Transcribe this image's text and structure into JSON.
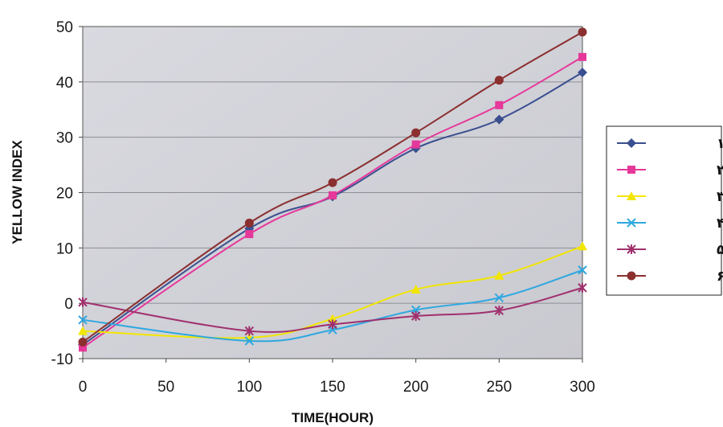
{
  "chart_data": {
    "type": "line",
    "xlabel": "TIME(HOUR)",
    "ylabel": "YELLOW INDEX",
    "xlim": [
      0,
      300
    ],
    "ylim": [
      -10,
      50
    ],
    "x_ticks": [
      "0",
      "50",
      "100",
      "150",
      "200",
      "250",
      "300"
    ],
    "y_ticks": [
      "-10",
      "0",
      "10",
      "20",
      "30",
      "40",
      "50"
    ],
    "grid": "horizontal",
    "legend_position": "right",
    "x": [
      0,
      100,
      150,
      200,
      250,
      300
    ],
    "series": [
      {
        "name": "نمونه ۱",
        "values": [
          -7.5,
          13.5,
          19.3,
          28,
          33.2,
          41.7
        ],
        "color": "#3a4f8f",
        "marker": "diamond"
      },
      {
        "name": "نمونه ۲",
        "values": [
          -8,
          12.5,
          19.5,
          28.7,
          35.8,
          44.5
        ],
        "color": "#e6389a",
        "marker": "square"
      },
      {
        "name": "نمونه ۳",
        "values": [
          -5,
          -6.2,
          -2.8,
          2.5,
          5,
          10.3
        ],
        "color": "#f2e600",
        "marker": "triangle"
      },
      {
        "name": "نمونه ۴",
        "values": [
          -3,
          -6.8,
          -4.8,
          -1.2,
          1,
          6
        ],
        "color": "#2ea8e0",
        "marker": "x"
      },
      {
        "name": "نمونه ۵",
        "values": [
          0.2,
          -5,
          -3.8,
          -2.3,
          -1.3,
          2.8
        ],
        "color": "#a0306e",
        "marker": "star"
      },
      {
        "name": "نمونه ۶",
        "values": [
          -7,
          14.5,
          21.8,
          30.8,
          40.3,
          49
        ],
        "color": "#8b2f2f",
        "marker": "circle"
      }
    ]
  }
}
